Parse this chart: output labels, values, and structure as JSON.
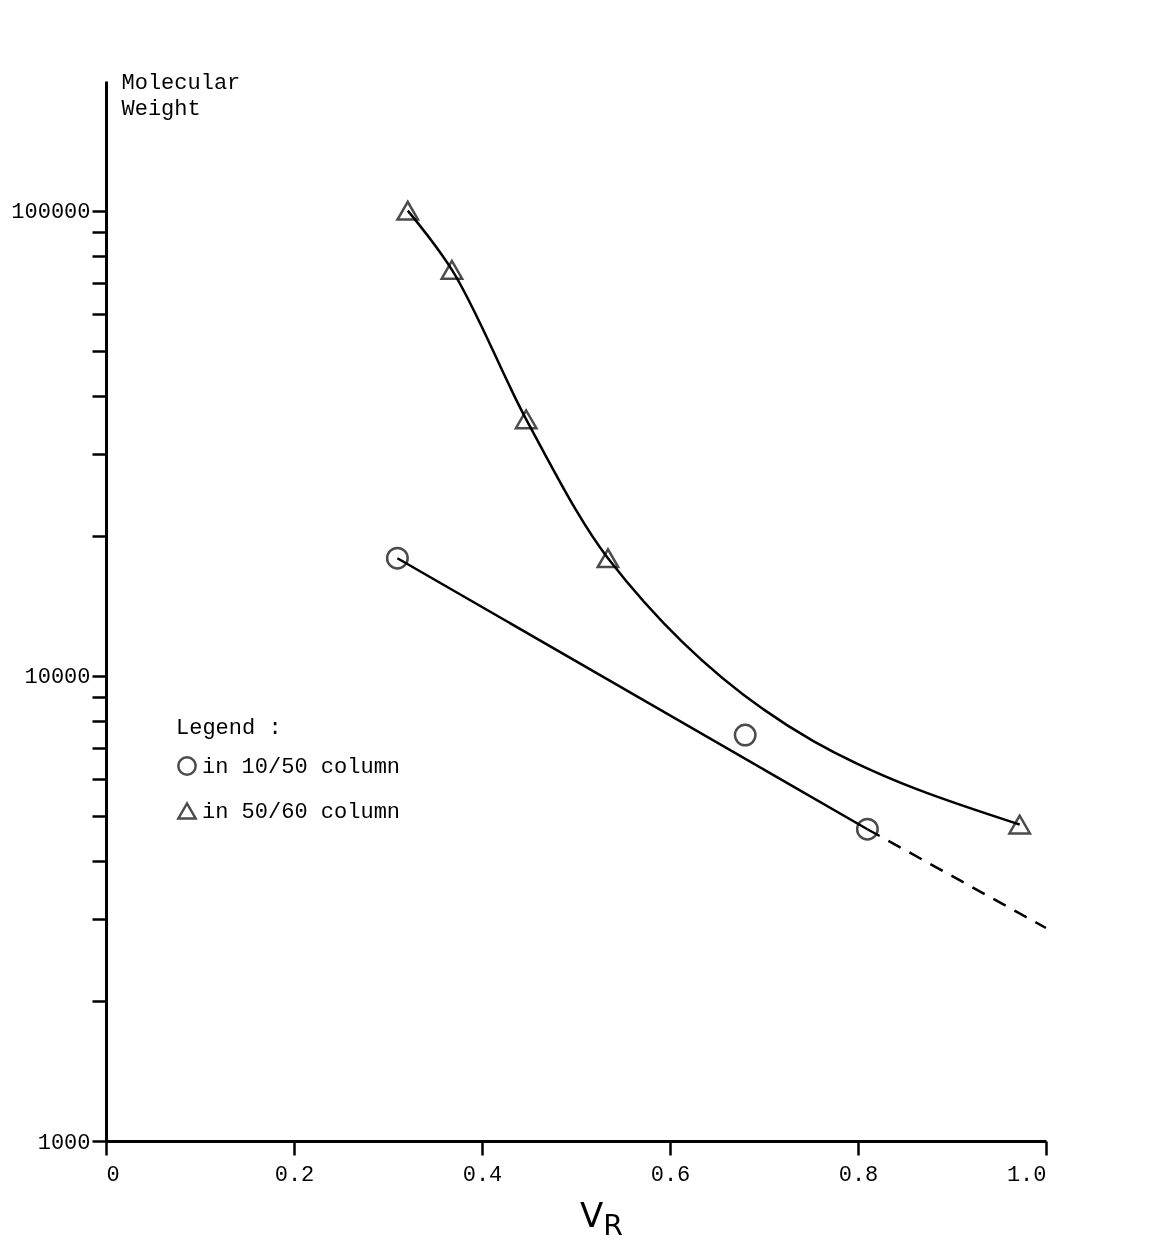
{
  "chart_data": {
    "type": "scatter",
    "ylabel": "Molecular Weight",
    "xlabel": "V$_{R}$",
    "legend_title": "Legend :",
    "legend": "left",
    "log": "y",
    "grid": false,
    "xlim": [
      0,
      1.0
    ],
    "xticks": [
      0,
      0.2,
      0.4,
      0.6,
      0.8,
      {
        "value": 1.0,
        "label": "1.0"
      }
    ],
    "ylim": [
      1000,
      190000
    ],
    "yticks": [
      1000,
      {
        "value": 2000,
        "label": null
      },
      {
        "value": 3000,
        "label": null
      },
      {
        "value": 4000,
        "label": null
      },
      {
        "value": 5000,
        "label": null
      },
      {
        "value": 6000,
        "label": null
      },
      {
        "value": 7000,
        "label": null
      },
      {
        "value": 8000,
        "label": null
      },
      {
        "value": 9000,
        "label": null
      },
      10000,
      {
        "value": 20000,
        "label": null
      },
      {
        "value": 30000,
        "label": null
      },
      {
        "value": 40000,
        "label": null
      },
      {
        "value": 50000,
        "label": null
      },
      {
        "value": 60000,
        "label": null
      },
      {
        "value": 70000,
        "label": null
      },
      {
        "value": 80000,
        "label": null
      },
      {
        "value": 90000,
        "label": null
      },
      100000
    ],
    "series": [
      {
        "name": "in 10/50 column",
        "type": "scatter",
        "marker": "circle",
        "color": "#000000",
        "x": [
          0.31,
          0.68,
          0.81
        ],
        "values": [
          17900,
          7460,
          4680
        ]
      },
      {
        "name": "in 50/60 column",
        "type": "line",
        "marker": "triangle",
        "line_style": "solid",
        "color": "#000000",
        "x": [
          0.321,
          0.368,
          0.447,
          0.534,
          0.972
        ],
        "values": [
          100000,
          74600,
          35600,
          17900,
          4790
        ]
      },
      {
        "type": "line",
        "marker": "none",
        "line_style": "solid",
        "color": "#000000",
        "x": [
          0.31,
          0.81
        ],
        "values": [
          17900,
          4680
        ]
      },
      {
        "type": "line",
        "marker": "none",
        "line_style": "dashed",
        "color": "#000000",
        "x": [
          0.81,
          1.0
        ],
        "values": [
          4680,
          2870
        ]
      }
    ]
  }
}
